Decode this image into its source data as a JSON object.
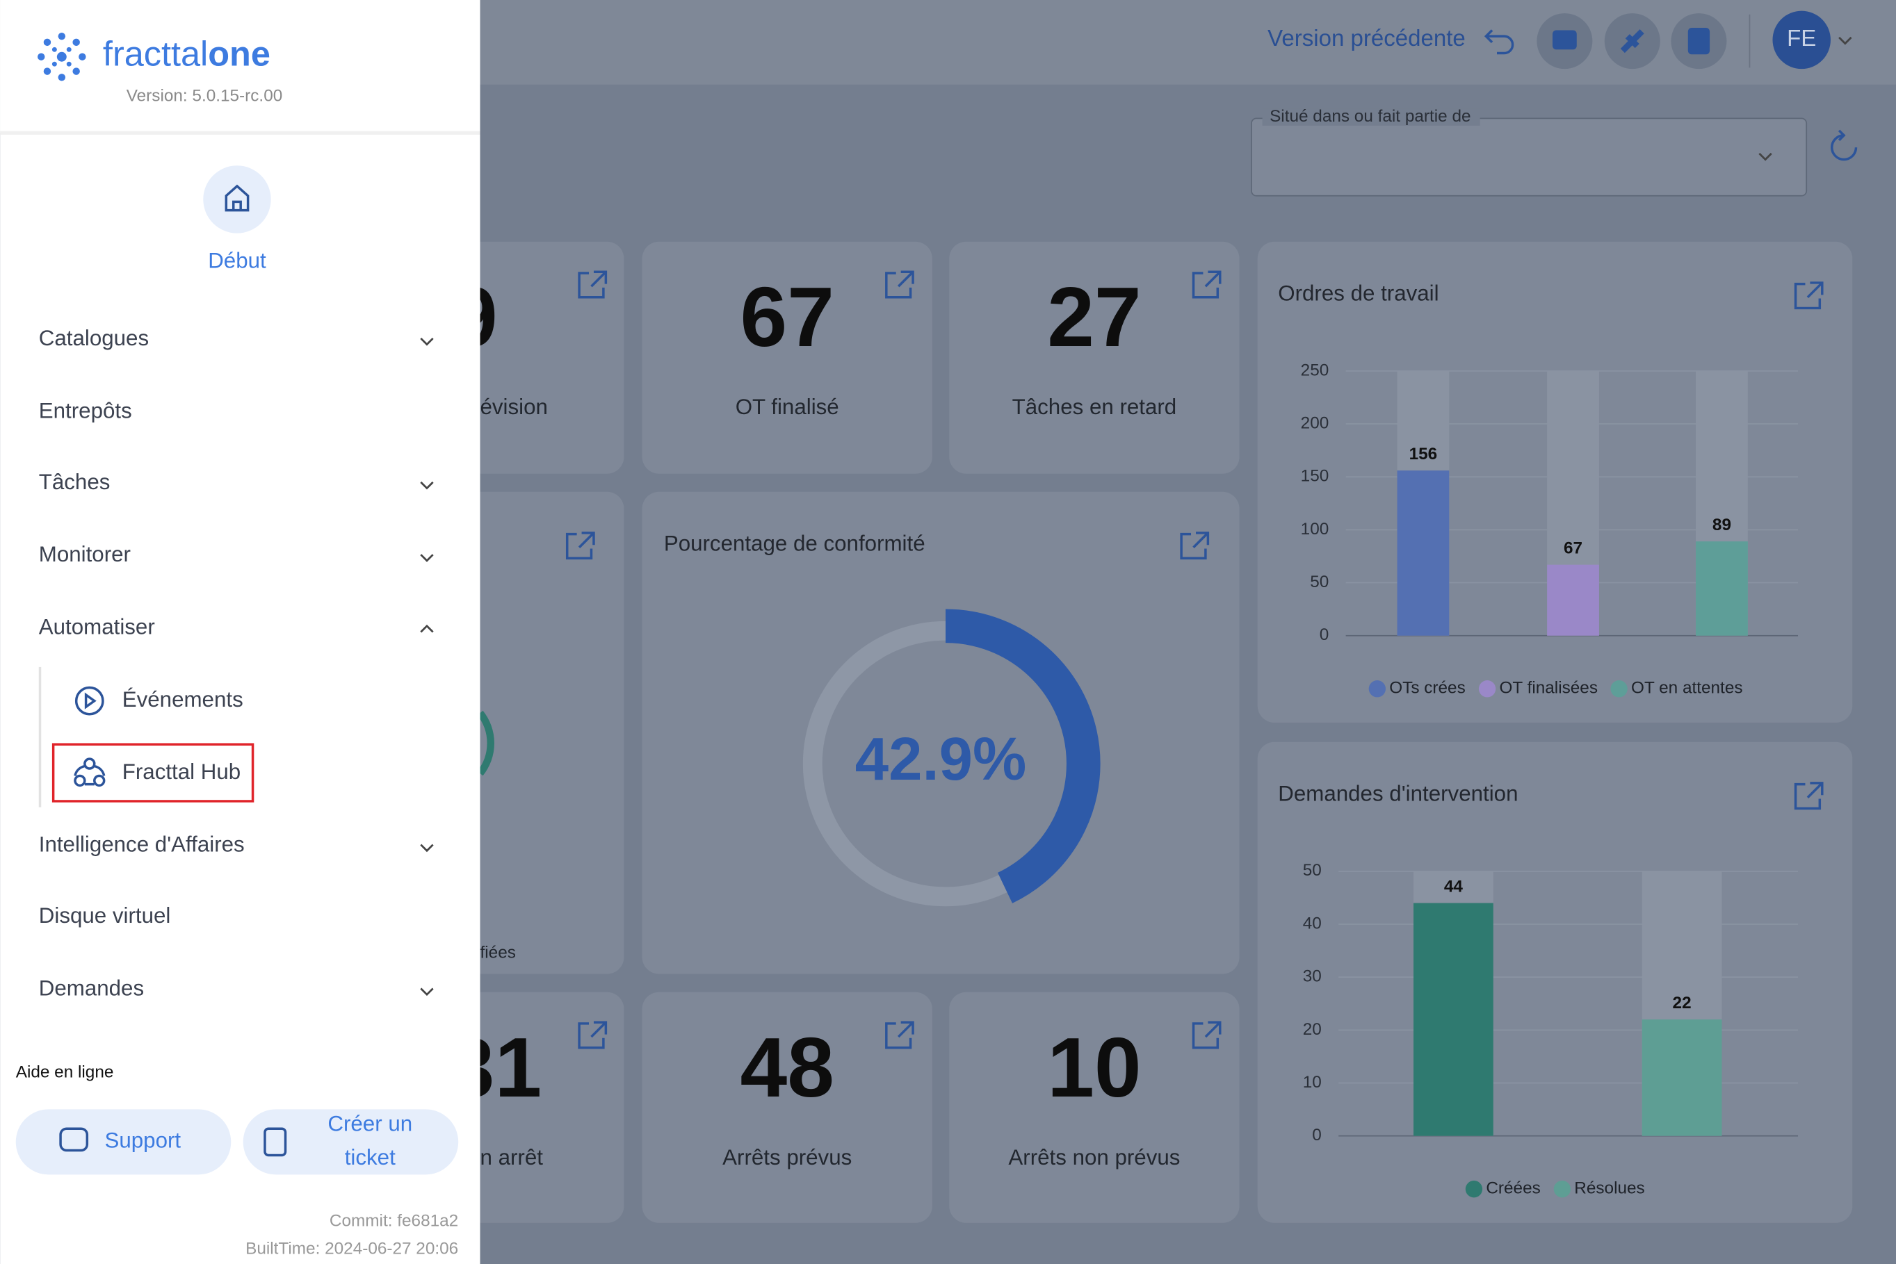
{
  "header": {
    "previous_version": "Version précédente",
    "user_initials": "FE",
    "location_filter": "Situé dans ou fait partie de"
  },
  "sidebar": {
    "logo": "fracttal",
    "logo_suffix": "one",
    "version": "Version: 5.0.15-rc.00",
    "home": "Début",
    "menu": [
      "Catalogues",
      "Entrepôts",
      "Tâches",
      "Monitorer",
      "Automatiser"
    ],
    "submenu": [
      "Événements",
      "Fracttal Hub"
    ],
    "menu_after": [
      "Intelligence d'Affaires",
      "Disque virtuel",
      "Demandes"
    ],
    "help_title": "Aide en ligne",
    "support": "Support",
    "ticket_line1": "Créer un",
    "ticket_line2": "ticket",
    "commit": "Commit: fe681a2",
    "built_time": "BuiltTime: 2024-06-27 20:06"
  },
  "dashboard": {
    "partial_cards": {
      "top_number": "9",
      "top_label": "évision",
      "middle_label": "fiées",
      "bottom_number": "31",
      "bottom_label": "n arrêt"
    },
    "kpis": [
      {
        "value": "67",
        "label": "OT finalisé"
      },
      {
        "value": "27",
        "label": "Tâches en retard"
      },
      {
        "value": "48",
        "label": "Arrêts prévus"
      },
      {
        "value": "10",
        "label": "Arrêts non prévus"
      }
    ],
    "compliance": {
      "title": "Pourcentage de conformité",
      "values": [
        42.9
      ],
      "value_labels": [
        "42.9%"
      ],
      "color": "#2e5aa8"
    },
    "work_orders": {
      "title": "Ordres de travail",
      "ylim": [
        0,
        250
      ],
      "yticks": [
        0,
        50,
        100,
        150,
        200,
        250
      ],
      "series": [
        {
          "name": "OTs crées",
          "color": "#5470b2",
          "values": [
            156
          ]
        },
        {
          "name": "OT finalisées",
          "color": "#9a88c8",
          "values": [
            67
          ]
        },
        {
          "name": "OT en attentes",
          "color": "#5e9e98",
          "values": [
            89
          ]
        }
      ]
    },
    "intervention_requests": {
      "title": "Demandes d'intervention",
      "ylim": [
        0,
        50
      ],
      "yticks": [
        0,
        10,
        20,
        30,
        40,
        50
      ],
      "series": [
        {
          "name": "Créées",
          "color": "#2f7a70",
          "values": [
            44
          ]
        },
        {
          "name": "Résolues",
          "color": "#5e9e94",
          "values": [
            22
          ]
        }
      ]
    }
  }
}
